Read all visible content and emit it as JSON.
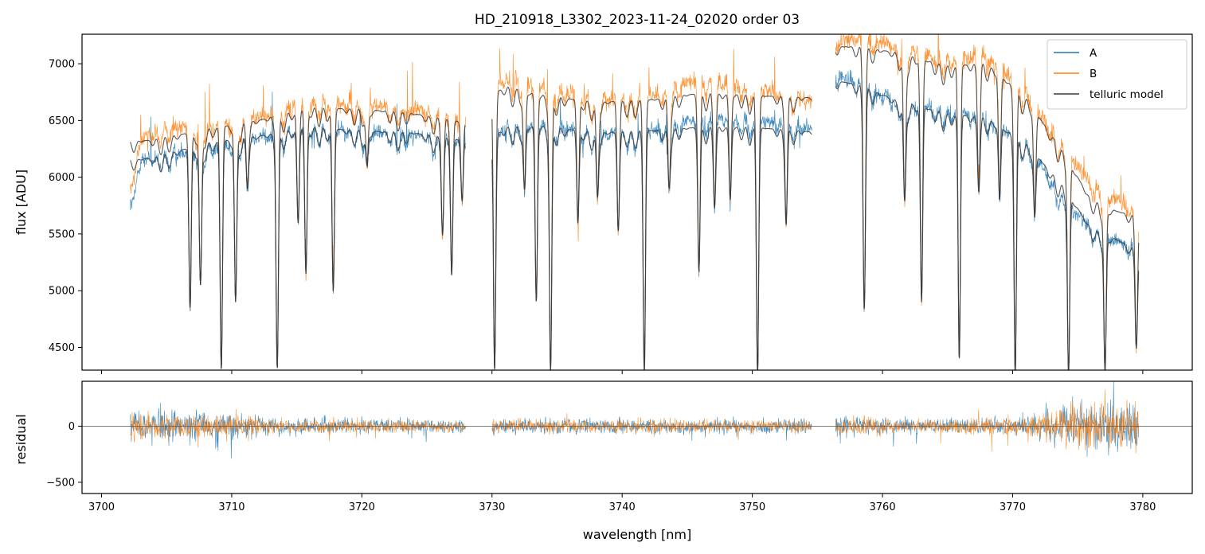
{
  "chart_data": [
    {
      "panel": "top",
      "type": "line",
      "title": "HD_210918_L3302_2023-11-24_02020  order 03",
      "xlabel": "",
      "ylabel": "flux [ADU]",
      "xlim": [
        3698.5,
        3783.8
      ],
      "ylim": [
        4300,
        7260
      ],
      "xticks": [
        3700,
        3710,
        3720,
        3730,
        3740,
        3750,
        3760,
        3770,
        3780
      ],
      "xtick_labels_visible": false,
      "yticks": [
        4500,
        5000,
        5500,
        6000,
        6500,
        7000
      ],
      "ytick_labels": [
        "4500",
        "5000",
        "5500",
        "6000",
        "6500",
        "7000"
      ],
      "legend": {
        "placement": "upper-right",
        "entries": [
          "A",
          "B",
          "telluric model"
        ]
      },
      "series": [
        {
          "name": "A",
          "color": "#1f77b4",
          "style": "noisy-thin-line",
          "segments": [
            [
              3702.2,
              3728.0
            ],
            [
              3730.0,
              3754.6
            ],
            [
              3756.4,
              3779.7
            ]
          ],
          "continuum": [
            [
              3702.2,
              5750
            ],
            [
              3703.0,
              6150
            ],
            [
              3705.0,
              6200
            ],
            [
              3707.0,
              6250
            ],
            [
              3710.0,
              6300
            ],
            [
              3713.0,
              6380
            ],
            [
              3716.0,
              6450
            ],
            [
              3720.0,
              6400
            ],
            [
              3724.0,
              6380
            ],
            [
              3728.0,
              6300
            ],
            [
              3730.0,
              6300
            ],
            [
              3731.0,
              6450
            ],
            [
              3734.0,
              6480
            ],
            [
              3738.0,
              6380
            ],
            [
              3742.0,
              6400
            ],
            [
              3746.0,
              6520
            ],
            [
              3750.0,
              6500
            ],
            [
              3754.6,
              6450
            ],
            [
              3756.4,
              6900
            ],
            [
              3758.0,
              6840
            ],
            [
              3761.0,
              6680
            ],
            [
              3765.0,
              6580
            ],
            [
              3768.0,
              6520
            ],
            [
              3771.0,
              6300
            ],
            [
              3774.0,
              5800
            ],
            [
              3776.0,
              5550
            ],
            [
              3778.0,
              5450
            ],
            [
              3779.7,
              5350
            ]
          ]
        },
        {
          "name": "B",
          "color": "#ff7f0e",
          "style": "noisy-thin-line",
          "segments": [
            [
              3702.2,
              3728.0
            ],
            [
              3730.0,
              3754.6
            ],
            [
              3756.4,
              3779.7
            ]
          ],
          "continuum": [
            [
              3702.2,
              5900
            ],
            [
              3703.0,
              6350
            ],
            [
              3705.0,
              6450
            ],
            [
              3707.0,
              6450
            ],
            [
              3710.0,
              6480
            ],
            [
              3713.0,
              6560
            ],
            [
              3716.0,
              6680
            ],
            [
              3720.0,
              6650
            ],
            [
              3724.0,
              6600
            ],
            [
              3728.0,
              6500
            ],
            [
              3730.0,
              6700
            ],
            [
              3731.0,
              6900
            ],
            [
              3734.0,
              6820
            ],
            [
              3738.0,
              6680
            ],
            [
              3742.0,
              6720
            ],
            [
              3746.0,
              6880
            ],
            [
              3750.0,
              6780
            ],
            [
              3754.6,
              6680
            ],
            [
              3756.4,
              7200
            ],
            [
              3758.0,
              7250
            ],
            [
              3761.0,
              7150
            ],
            [
              3765.0,
              7050
            ],
            [
              3768.0,
              7100
            ],
            [
              3771.0,
              6750
            ],
            [
              3774.0,
              6250
            ],
            [
              3776.0,
              5950
            ],
            [
              3778.0,
              5800
            ],
            [
              3779.7,
              5700
            ]
          ]
        },
        {
          "name": "telluric model",
          "color": "#3a3a3a",
          "style": "smooth-line",
          "segments": [
            [
              3702.2,
              3728.0
            ],
            [
              3730.0,
              3754.6
            ],
            [
              3756.4,
              3779.7
            ]
          ],
          "continuum_low": [
            [
              3702.2,
              6150
            ],
            [
              3704.0,
              6170
            ],
            [
              3708.0,
              6300
            ],
            [
              3712.0,
              6360
            ],
            [
              3716.0,
              6440
            ],
            [
              3720.0,
              6410
            ],
            [
              3724.0,
              6390
            ],
            [
              3728.0,
              6320
            ],
            [
              3730.0,
              6330
            ],
            [
              3731.0,
              6440
            ],
            [
              3734.0,
              6450
            ],
            [
              3738.0,
              6390
            ],
            [
              3742.0,
              6410
            ],
            [
              3746.0,
              6440
            ],
            [
              3750.0,
              6440
            ],
            [
              3754.6,
              6400
            ],
            [
              3756.4,
              6850
            ],
            [
              3758.0,
              6820
            ],
            [
              3761.0,
              6680
            ],
            [
              3765.0,
              6560
            ],
            [
              3768.0,
              6520
            ],
            [
              3771.0,
              6300
            ],
            [
              3774.0,
              5900
            ],
            [
              3776.0,
              5550
            ],
            [
              3778.0,
              5450
            ],
            [
              3779.7,
              5350
            ]
          ],
          "continuum_high": [
            [
              3702.2,
              6310
            ],
            [
              3704.0,
              6330
            ],
            [
              3708.0,
              6420
            ],
            [
              3712.0,
              6500
            ],
            [
              3716.0,
              6610
            ],
            [
              3720.0,
              6600
            ],
            [
              3724.0,
              6560
            ],
            [
              3728.0,
              6480
            ],
            [
              3730.0,
              6720
            ],
            [
              3731.0,
              6800
            ],
            [
              3734.0,
              6720
            ],
            [
              3738.0,
              6660
            ],
            [
              3742.0,
              6680
            ],
            [
              3746.0,
              6740
            ],
            [
              3750.0,
              6720
            ],
            [
              3754.6,
              6700
            ],
            [
              3756.4,
              7150
            ],
            [
              3758.0,
              7150
            ],
            [
              3761.0,
              7100
            ],
            [
              3765.0,
              6980
            ],
            [
              3768.0,
              7000
            ],
            [
              3771.0,
              6700
            ],
            [
              3774.0,
              6200
            ],
            [
              3776.0,
              5800
            ],
            [
              3778.0,
              5700
            ],
            [
              3779.7,
              5650
            ]
          ],
          "absorption_lines": [
            [
              3706.8,
              4850
            ],
            [
              3707.6,
              5050
            ],
            [
              3709.2,
              4300
            ],
            [
              3710.3,
              4900
            ],
            [
              3711.2,
              6000
            ],
            [
              3713.5,
              4350
            ],
            [
              3715.1,
              5600
            ],
            [
              3715.7,
              5150
            ],
            [
              3717.8,
              5000
            ],
            [
              3720.4,
              6100
            ],
            [
              3726.2,
              5600
            ],
            [
              3726.9,
              5150
            ],
            [
              3727.7,
              5800
            ],
            [
              3730.2,
              4300
            ],
            [
              3732.5,
              5900
            ],
            [
              3733.4,
              4900
            ],
            [
              3734.5,
              4300
            ],
            [
              3736.6,
              5600
            ],
            [
              3738.1,
              5850
            ],
            [
              3739.7,
              5550
            ],
            [
              3741.7,
              4300
            ],
            [
              3743.6,
              6000
            ],
            [
              3745.9,
              5200
            ],
            [
              3747.1,
              5850
            ],
            [
              3748.3,
              5800
            ],
            [
              3750.4,
              4300
            ],
            [
              3752.6,
              5700
            ],
            [
              3758.6,
              4950
            ],
            [
              3761.7,
              5800
            ],
            [
              3763.0,
              4900
            ],
            [
              3765.9,
              4400
            ],
            [
              3767.4,
              6000
            ],
            [
              3769.0,
              5800
            ],
            [
              3770.2,
              4300
            ],
            [
              3771.7,
              5650
            ],
            [
              3774.3,
              4300
            ],
            [
              3777.1,
              4300
            ],
            [
              3779.5,
              4600
            ]
          ]
        }
      ]
    },
    {
      "panel": "bottom",
      "type": "line",
      "title": "",
      "xlabel": "wavelength [nm]",
      "ylabel": "residual",
      "xlim": [
        3698.5,
        3783.8
      ],
      "ylim": [
        -600,
        400
      ],
      "xticks": [
        3700,
        3710,
        3720,
        3730,
        3740,
        3750,
        3760,
        3770,
        3780
      ],
      "xtick_labels": [
        "3700",
        "3710",
        "3720",
        "3730",
        "3740",
        "3750",
        "3760",
        "3770",
        "3780"
      ],
      "yticks": [
        -500,
        0
      ],
      "ytick_labels": [
        "−500",
        "0"
      ],
      "reference_line": 0,
      "series": [
        {
          "name": "A",
          "color": "#1f77b4",
          "style": "noisy-thin-line",
          "segments": [
            [
              3702.2,
              3728.0
            ],
            [
              3730.0,
              3754.6
            ],
            [
              3756.4,
              3779.7
            ]
          ],
          "noise_amplitude": [
            [
              3702.2,
              250
            ],
            [
              3703.0,
              220
            ],
            [
              3710.0,
              200
            ],
            [
              3714.0,
              130
            ],
            [
              3728.0,
              90
            ],
            [
              3730.0,
              110
            ],
            [
              3740.0,
              110
            ],
            [
              3754.6,
              110
            ],
            [
              3756.4,
              150
            ],
            [
              3762.0,
              110
            ],
            [
              3768.0,
              110
            ],
            [
              3772.0,
              180
            ],
            [
              3774.0,
              350
            ],
            [
              3779.7,
              400
            ]
          ]
        },
        {
          "name": "B",
          "color": "#ff7f0e",
          "style": "noisy-thin-line",
          "segments": [
            [
              3702.2,
              3728.0
            ],
            [
              3730.0,
              3754.6
            ],
            [
              3756.4,
              3779.7
            ]
          ],
          "noise_amplitude": [
            [
              3702.2,
              230
            ],
            [
              3703.0,
              200
            ],
            [
              3710.0,
              180
            ],
            [
              3714.0,
              110
            ],
            [
              3728.0,
              80
            ],
            [
              3730.0,
              100
            ],
            [
              3740.0,
              100
            ],
            [
              3754.6,
              100
            ],
            [
              3756.4,
              130
            ],
            [
              3762.0,
              100
            ],
            [
              3768.0,
              130
            ],
            [
              3772.0,
              170
            ],
            [
              3774.0,
              320
            ],
            [
              3779.7,
              380
            ]
          ]
        }
      ]
    }
  ]
}
